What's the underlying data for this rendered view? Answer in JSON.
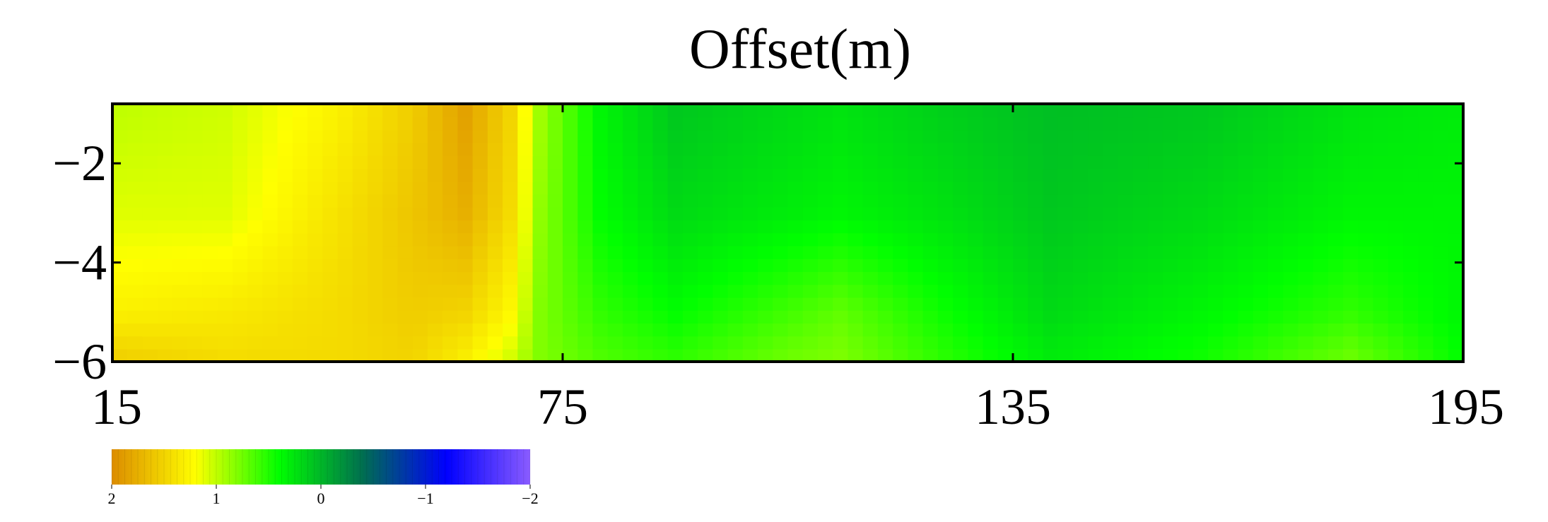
{
  "chart_data": {
    "type": "heatmap",
    "title": "Offset(m)",
    "xlabel": "",
    "ylabel": "",
    "x_ticks": [
      15,
      75,
      135,
      195
    ],
    "y_ticks": [
      -2,
      -4,
      -6
    ],
    "xlim": [
      15,
      195
    ],
    "ylim": [
      -6,
      -0.8
    ],
    "x": [
      15,
      30,
      45,
      55,
      62,
      68,
      72,
      80,
      90,
      105,
      112,
      125,
      140,
      160,
      180,
      195
    ],
    "y": [
      -1,
      -3,
      -5,
      -6
    ],
    "z": [
      [
        1.0,
        1.05,
        1.3,
        1.55,
        1.85,
        1.5,
        0.9,
        0.35,
        0.1,
        0.2,
        0.25,
        0.15,
        0.05,
        0.1,
        0.25,
        0.3
      ],
      [
        1.1,
        1.1,
        1.4,
        1.6,
        1.75,
        1.45,
        0.85,
        0.4,
        0.2,
        0.3,
        0.35,
        0.25,
        0.1,
        0.2,
        0.35,
        0.35
      ],
      [
        1.3,
        1.35,
        1.45,
        1.55,
        1.5,
        1.25,
        0.8,
        0.55,
        0.4,
        0.6,
        0.7,
        0.45,
        0.2,
        0.35,
        0.55,
        0.35
      ],
      [
        1.55,
        1.45,
        1.45,
        1.5,
        1.3,
        1.05,
        0.8,
        0.65,
        0.55,
        0.75,
        0.8,
        0.55,
        0.3,
        0.45,
        0.75,
        0.4
      ]
    ],
    "colorbar": {
      "ticks": [
        2,
        1,
        0,
        -1,
        -2
      ],
      "tick_labels": [
        "2",
        "1",
        "0",
        "−1",
        "−2"
      ],
      "colors": [
        "#dc8c00",
        "#ffff00",
        "#00ff00",
        "#006e50",
        "#0000ff",
        "#8a5cff"
      ]
    },
    "grid": false,
    "legend": "colorbar bottom-left"
  }
}
